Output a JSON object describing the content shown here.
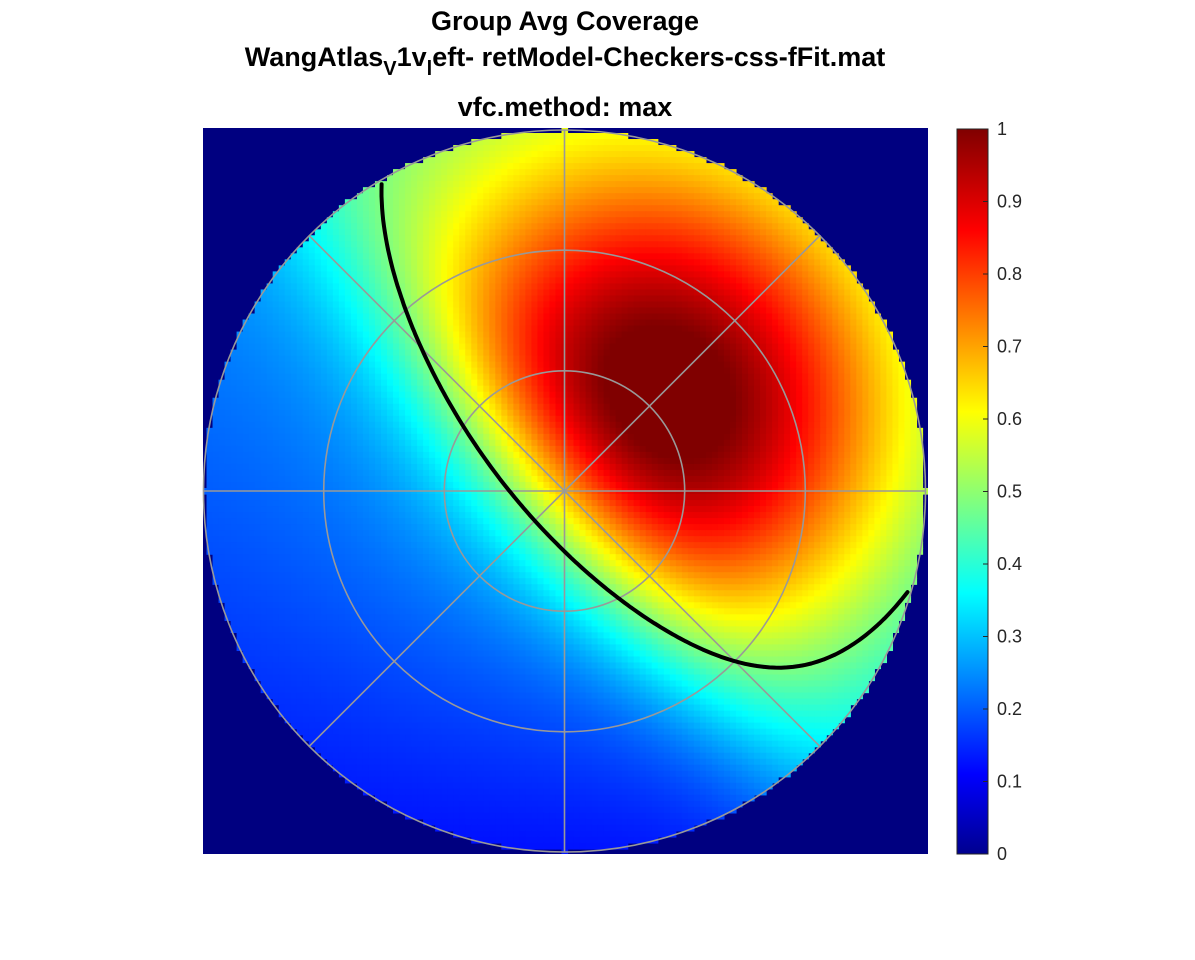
{
  "figure": {
    "title_line1": "Group Avg Coverage",
    "title_line2_parts": {
      "a": "WangAtlas",
      "sub1": "V",
      "b": "1v",
      "sub2": "l",
      "c": "eft- retModel-Checkers-css-fFit.mat"
    },
    "title_line3": "vfc.method: max"
  },
  "chart_data": {
    "type": "heatmap",
    "title": "Group Avg Coverage",
    "subtitle": "vfc.method: max",
    "colormap": "jet",
    "clim": [
      0,
      1
    ],
    "background_value": 0,
    "peak": {
      "x": 0.3,
      "y": 0.25,
      "value": 1.0
    },
    "colorbar": {
      "ticks": [
        0,
        0.1,
        0.2,
        0.3,
        0.4,
        0.5,
        0.6,
        0.7,
        0.8,
        0.9,
        1
      ],
      "tick_labels": [
        "0",
        "0.1",
        "0.2",
        "0.3",
        "0.4",
        "0.5",
        "0.6",
        "0.7",
        "0.8",
        "0.9",
        "1"
      ]
    },
    "polar_grid": {
      "rings": [
        0.333,
        0.667,
        1.0
      ],
      "spokes_deg": [
        0,
        45,
        90,
        135,
        180,
        225,
        270,
        315
      ],
      "color": "#999999"
    },
    "contour": {
      "level": 0.5,
      "style": "dash-dot",
      "color": "#000000"
    }
  }
}
